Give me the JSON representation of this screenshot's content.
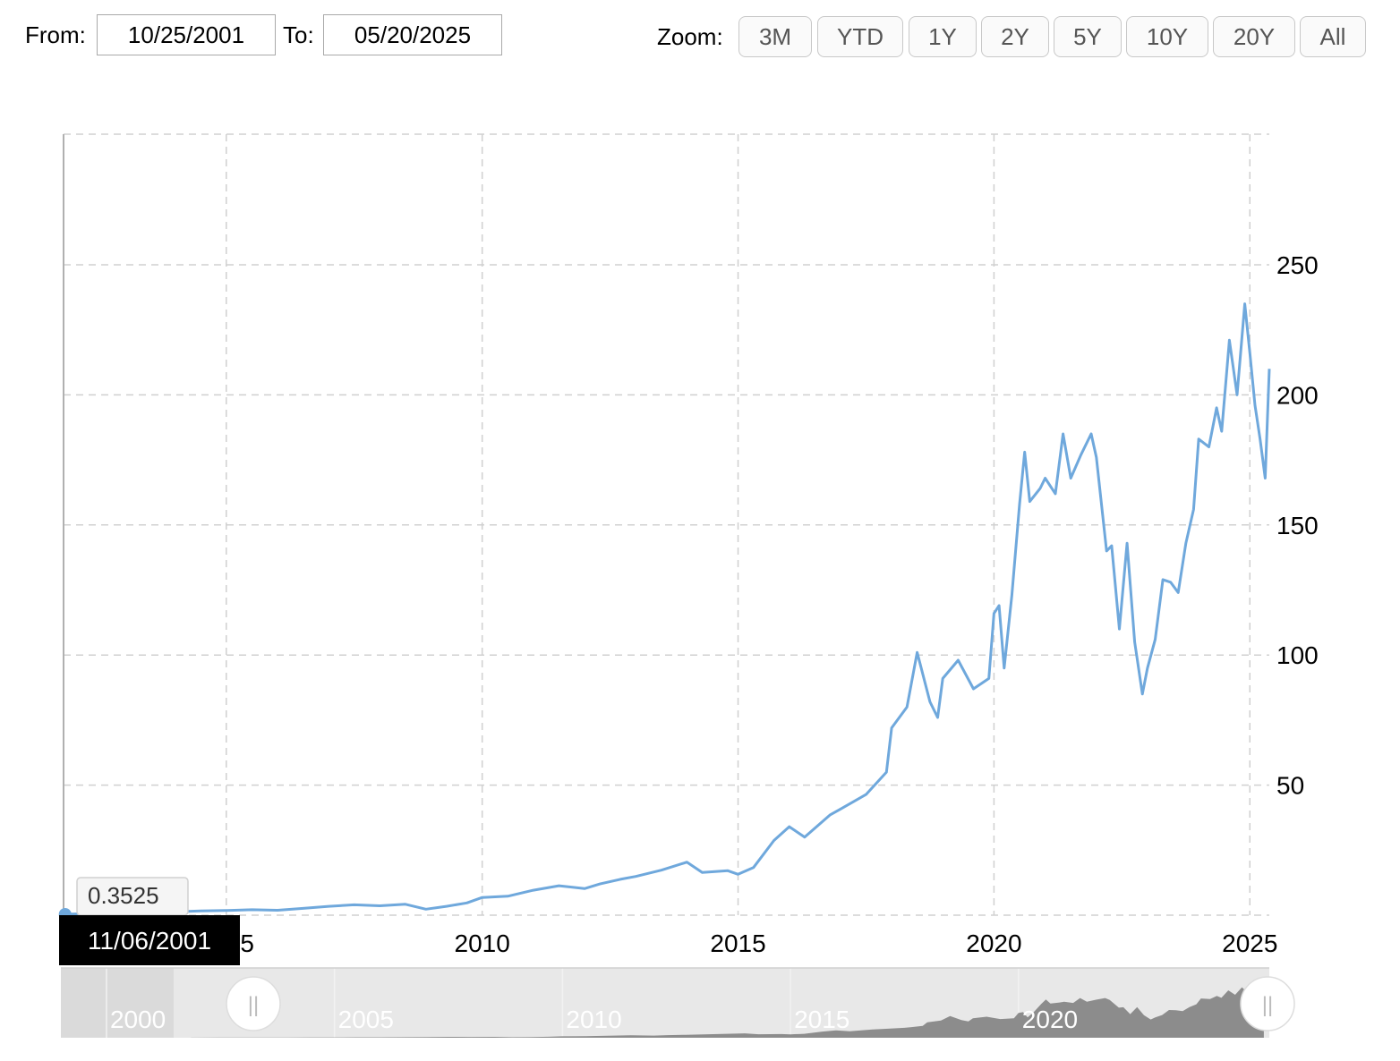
{
  "controls": {
    "from_label": "From:",
    "from_value": "10/25/2001",
    "to_label": "To:",
    "to_value": "05/20/2025",
    "zoom_label": "Zoom:",
    "zoom_buttons": [
      "3M",
      "YTD",
      "1Y",
      "2Y",
      "5Y",
      "10Y",
      "20Y",
      "All"
    ]
  },
  "tooltip": {
    "value": "0.3525",
    "date": "11/06/2001"
  },
  "navigator": {
    "labels": [
      "2000",
      "2005",
      "2010",
      "2015",
      "2020"
    ],
    "handle_glyph": "||"
  },
  "colors": {
    "line": "#6fa8dc",
    "grid": "#d0d0d0",
    "navigator_bg": "#e8e8e8",
    "navigator_area": "#8c8c8c",
    "tooltip_date_bg": "#000000"
  },
  "chart_data": {
    "type": "line",
    "title": "",
    "xlabel": "",
    "ylabel": "",
    "xlim": [
      2001.82,
      2025.38
    ],
    "ylim": [
      0,
      250
    ],
    "x_ticks": [
      2005,
      2010,
      2015,
      2020,
      2025
    ],
    "y_ticks": [
      50,
      100,
      150,
      200,
      250
    ],
    "grid": true,
    "y_axis_side": "right",
    "series": [
      {
        "x": [
          2001.85,
          2002.5,
          2003.0,
          2003.5,
          2004.0,
          2004.5,
          2005.0,
          2005.5,
          2006.0,
          2006.5,
          2007.0,
          2007.5,
          2008.0,
          2008.5,
          2008.9,
          2009.3,
          2009.7,
          2010.0,
          2010.5,
          2011.0,
          2011.5,
          2012.0,
          2012.3,
          2012.7,
          2013.0,
          2013.5,
          2014.0,
          2014.3,
          2014.8,
          2015.0,
          2015.3,
          2015.7,
          2016.0,
          2016.3,
          2016.8,
          2017.0,
          2017.5,
          2017.9,
          2018.0,
          2018.3,
          2018.5,
          2018.75,
          2018.9,
          2019.0,
          2019.3,
          2019.6,
          2019.9,
          2020.0,
          2020.1,
          2020.2,
          2020.35,
          2020.5,
          2020.6,
          2020.7,
          2020.9,
          2021.0,
          2021.2,
          2021.35,
          2021.5,
          2021.7,
          2021.9,
          2022.0,
          2022.2,
          2022.3,
          2022.45,
          2022.6,
          2022.75,
          2022.9,
          2023.0,
          2023.15,
          2023.3,
          2023.45,
          2023.6,
          2023.75,
          2023.9,
          2024.0,
          2024.2,
          2024.35,
          2024.45,
          2024.6,
          2024.75,
          2024.9,
          2025.0,
          2025.1,
          2025.2,
          2025.3,
          2025.38
        ],
        "values": [
          0.35,
          0.8,
          1.1,
          1.0,
          1.3,
          1.6,
          1.8,
          2.1,
          1.9,
          2.6,
          3.4,
          4.0,
          3.6,
          4.2,
          2.3,
          3.4,
          4.7,
          6.8,
          7.3,
          9.6,
          11.3,
          10.2,
          12.0,
          13.8,
          14.9,
          17.3,
          20.4,
          16.4,
          17.1,
          15.7,
          18.3,
          28.7,
          34.0,
          30.0,
          38.6,
          40.8,
          46.4,
          55.0,
          72.0,
          80.0,
          101.0,
          82.0,
          76.0,
          91.0,
          98.0,
          87.0,
          91.0,
          116.0,
          119.0,
          95.0,
          123.0,
          158.0,
          178.0,
          159.0,
          164.0,
          168.0,
          162.0,
          185.0,
          168.0,
          177.0,
          185.0,
          176.0,
          140.0,
          142.0,
          110.0,
          143.0,
          105.0,
          85.0,
          95.0,
          106.0,
          129.0,
          128.0,
          124.0,
          143.0,
          156.0,
          183.0,
          180.0,
          195.0,
          186.0,
          221.0,
          200.0,
          235.0,
          216.0,
          196.0,
          183.0,
          168.0,
          210.0
        ]
      }
    ]
  }
}
